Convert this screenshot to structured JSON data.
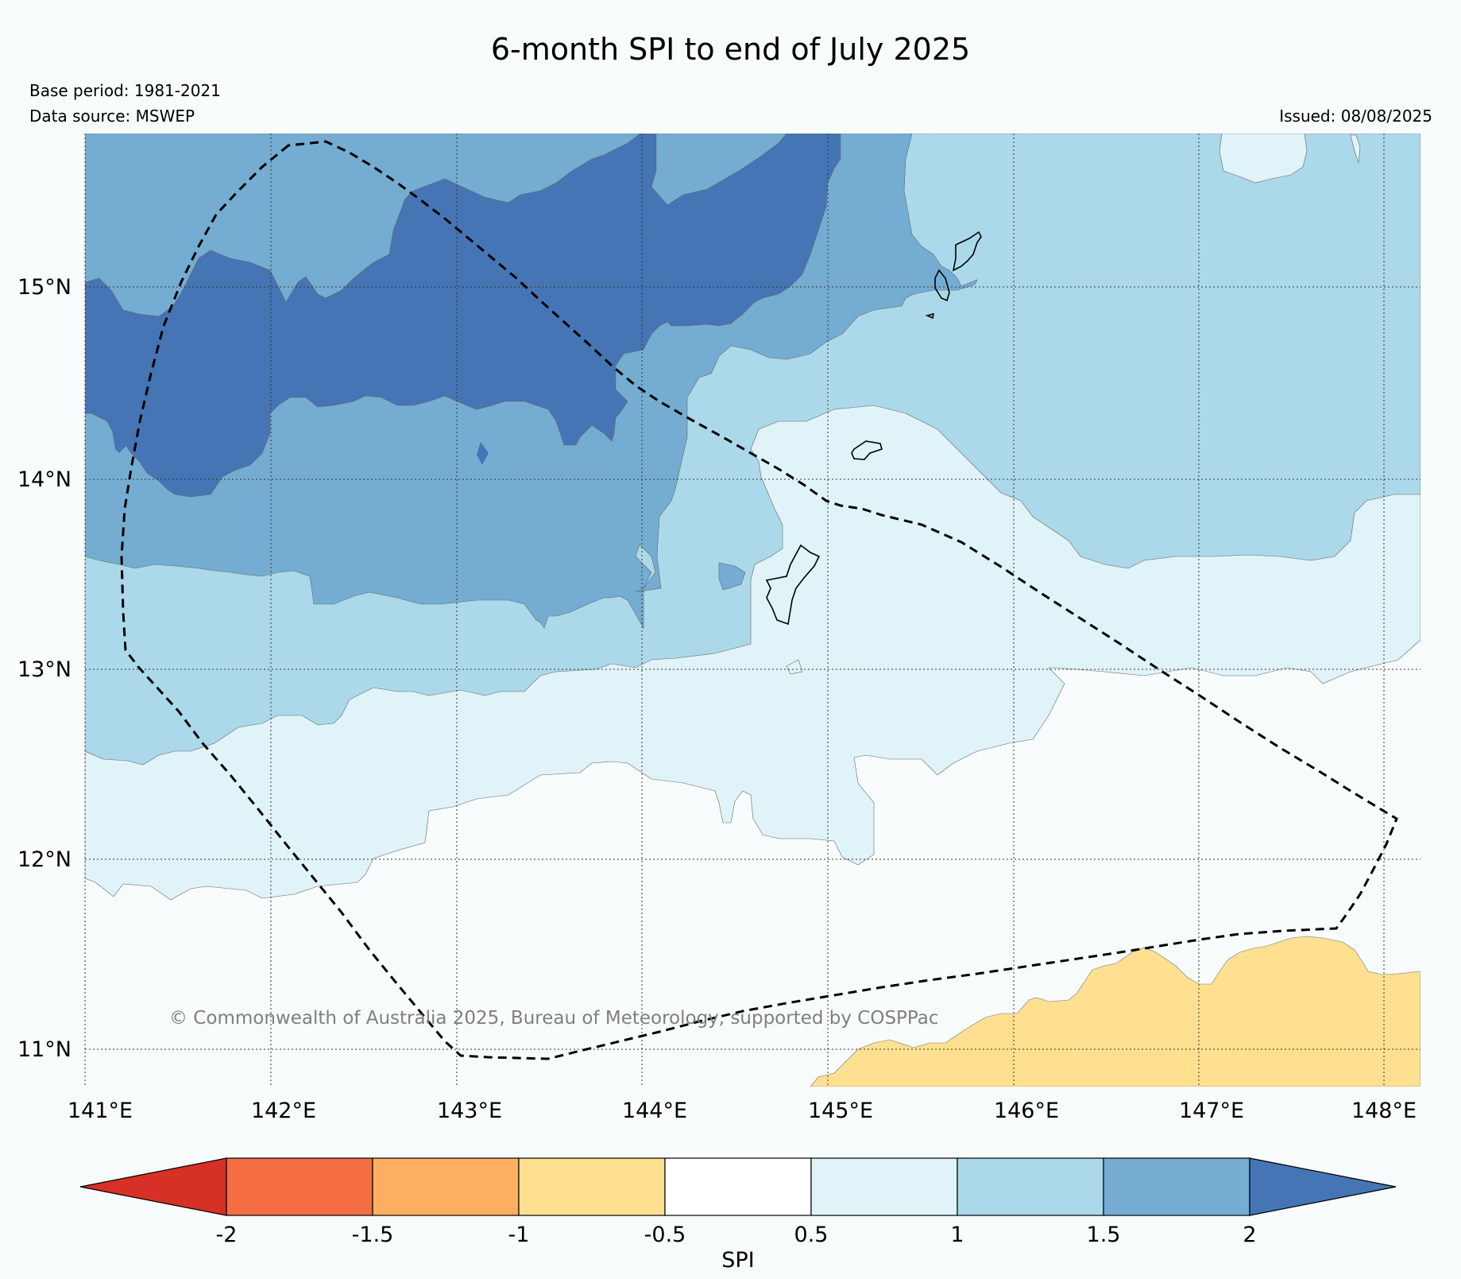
{
  "title": "6-month SPI to end of July 2025",
  "base_period": "Base period: 1981-2021",
  "data_source": "Data source: MSWEP",
  "issued": "Issued: 08/08/2025",
  "copyright": "© Commonwealth of Australia 2025, Bureau of Meteorology, supported by COSPPac",
  "lon_labels": [
    "141°E",
    "142°E",
    "143°E",
    "144°E",
    "145°E",
    "146°E",
    "147°E",
    "148°E"
  ],
  "lat_labels": [
    "15°N",
    "14°N",
    "13°N",
    "12°N",
    "11°N"
  ],
  "colorbar": {
    "label": "SPI",
    "ticks": [
      "-2",
      "-1.5",
      "-1",
      "-0.5",
      "0.5",
      "1",
      "1.5",
      "2"
    ],
    "colors": [
      "#d73027",
      "#f46d43",
      "#fdae61",
      "#fee090",
      "#ffffff",
      "#e0f3f8",
      "#abd9e9",
      "#74add1",
      "#4575b4"
    ]
  },
  "map_colors": {
    "very_wet": "#4575b4",
    "wet": "#74add1",
    "moderately_wet": "#abd9e9",
    "slightly_wet": "#e0f3f8",
    "near_normal": "#f8fcfd",
    "slightly_dry": "#fee090"
  }
}
